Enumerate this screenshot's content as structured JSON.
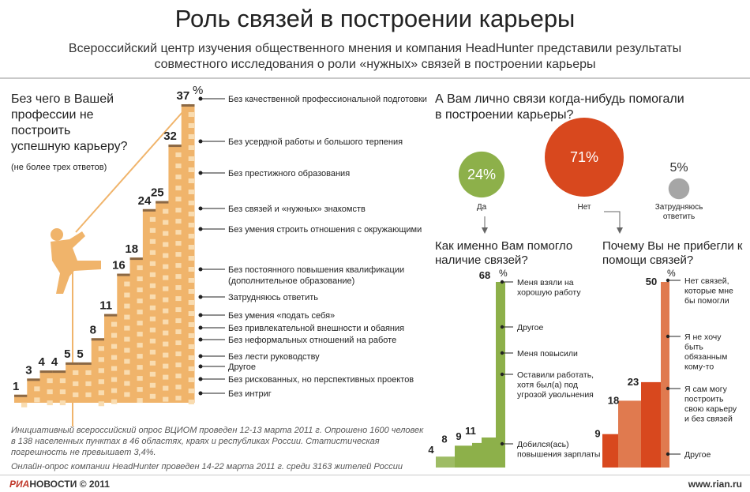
{
  "header": {
    "title": "Роль связей в построении карьеры",
    "subtitle": "Всероссийский центр изучения общественного мнения и компания HeadHunter представили результаты совместного исследования о роли «нужных» связей в построении карьеры"
  },
  "left_panel": {
    "question": "Без чего в Вашей профессии не построить успешную карьеру?",
    "note": "(не более трех ответов)",
    "unit": "%"
  },
  "right_panel": {
    "question": "А Вам лично связи когда-нибудь помогали в построении карьеры?",
    "q2": "Как именно Вам помогло наличие связей?",
    "q3": "Почему Вы не прибегли к помощи связей?",
    "unit": "%"
  },
  "colors": {
    "orange": "#f0b46b",
    "orange_light": "#f9dcb0",
    "brown": "#8b6844",
    "green": "#8db04a",
    "red": "#d8481e",
    "red_light": "#e07a4f",
    "gray": "#a6a6a6"
  },
  "chart_data": [
    {
      "type": "bar",
      "title": "Без чего в Вашей профессии не построить успешную карьеру?",
      "ylabel": "%",
      "categories": [
        "Без интриг",
        "Без рискованных, но перспективных проектов",
        "Другое",
        "Без лести руководству",
        "Без неформальных отношений на работе",
        "Без привлекательной внешности и обаяния",
        "Без умения «подать себя»",
        "Затрудняюсь ответить",
        "Без постоянного повышения квалификации (дополнительное образование)",
        "Без умения строить отношения с окружающими",
        "Без связей и «нужных» знакомств",
        "Без престижного образования",
        "Без усердной работы и большого терпения",
        "Без качественной профессиональной подготовки"
      ],
      "values": [
        1,
        3,
        4,
        4,
        5,
        5,
        8,
        11,
        16,
        18,
        24,
        25,
        32,
        37
      ],
      "ylim": [
        0,
        37
      ]
    },
    {
      "type": "pie",
      "title": "А Вам лично связи когда-нибудь помогали в построении карьеры?",
      "categories": [
        "Да",
        "Нет",
        "Затрудняюсь ответить"
      ],
      "values": [
        24,
        71,
        5
      ],
      "value_labels": [
        "24%",
        "71%",
        "5%"
      ]
    },
    {
      "type": "area",
      "title": "Как именно Вам помогло наличие связей?",
      "ylabel": "%",
      "categories": [
        "Добился(ась) повышения зарплаты",
        "Оставили работать, хотя был(а) под угрозой увольнения",
        "Меня повысили",
        "Другое",
        "Меня взяли на хорошую работу"
      ],
      "values": [
        4,
        8,
        9,
        11,
        68
      ],
      "ylim": [
        0,
        68
      ]
    },
    {
      "type": "area",
      "title": "Почему Вы не прибегли к помощи связей?",
      "ylabel": "%",
      "categories": [
        "Другое",
        "Я сам могу построить свою карьеру и без связей",
        "Я не хочу быть обязанным кому-то",
        "Нет связей, которые мне бы помогли"
      ],
      "values": [
        9,
        18,
        23,
        50
      ],
      "ylim": [
        0,
        50
      ]
    }
  ],
  "footer": {
    "survey_note": "Инициативный всероссийский опрос ВЦИОМ проведен 12-13 марта 2011 г. Опрошено 1600 человек в 138 населенных пунктах в 46 областях, краях и республиках России. Статистическая погрешность не превышает 3,4%.",
    "online_note": "Онлайн-опрос компании HeadHunter проведен 14-22 марта 2011 г. среди 3163 жителей России",
    "logo_ria": "РИА",
    "logo_novosti": "НОВОСТИ",
    "copyright": "© 2011",
    "site": "www.rian.ru"
  }
}
